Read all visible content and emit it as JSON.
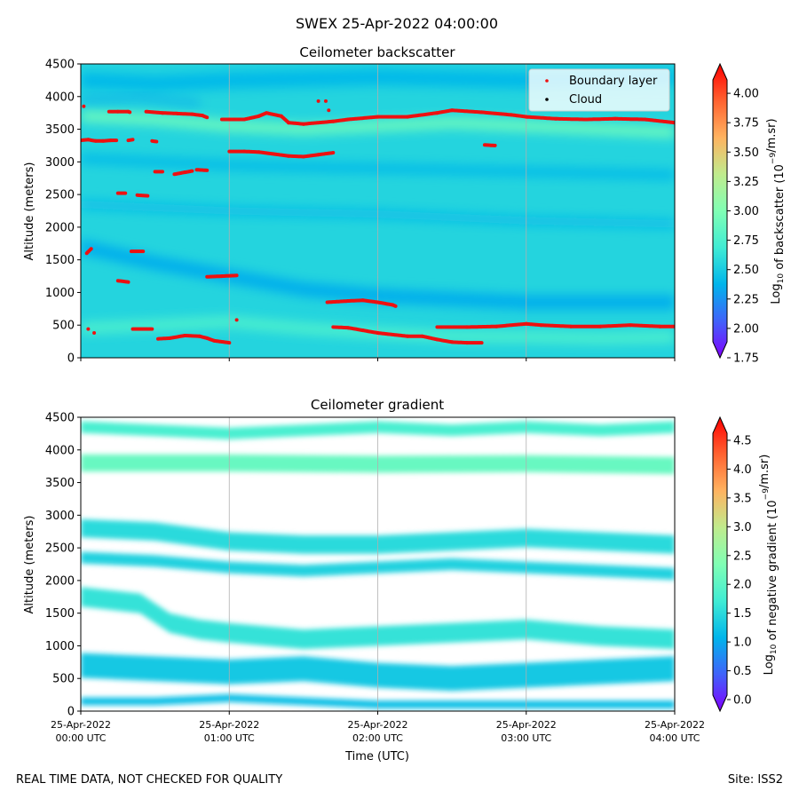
{
  "suptitle": "SWEX 25-Apr-2022 04:00:00",
  "footer": {
    "left": "REAL TIME DATA, NOT CHECKED FOR QUALITY",
    "right": "Site: ISS2"
  },
  "colors": {
    "boundary_layer": "#ee1111",
    "cloud": "#000000",
    "grid": "#b0b0b0"
  },
  "chart_data": [
    {
      "type": "heatmap",
      "title": "Ceilometer backscatter",
      "ylabel": "Altitude (meters)",
      "xlabel": "",
      "xlim_hours": [
        0,
        4
      ],
      "ylim": [
        0,
        4500
      ],
      "yticks": [
        0,
        500,
        1000,
        1500,
        2000,
        2500,
        3000,
        3500,
        4000,
        4500
      ],
      "xticks": [
        {
          "hour": 0,
          "line1": "",
          "line2": ""
        },
        {
          "hour": 1,
          "line1": "",
          "line2": ""
        },
        {
          "hour": 2,
          "line1": "",
          "line2": ""
        },
        {
          "hour": 3,
          "line1": "",
          "line2": ""
        },
        {
          "hour": 4,
          "line1": "",
          "line2": ""
        }
      ],
      "colorbar": {
        "label_prefix": "Log",
        "label_sub": "10",
        "label_mid": " of backscatter (10",
        "label_sup": "−9",
        "label_suffix": "/m.sr)",
        "min": 1.75,
        "max": 4.25,
        "ticks": [
          "1.75",
          "2.00",
          "2.25",
          "2.50",
          "2.75",
          "3.00",
          "3.25",
          "3.50",
          "3.75",
          "4.00"
        ],
        "extend": "both"
      },
      "legend": {
        "location": "upper right",
        "entries": [
          {
            "label": "Boundary layer",
            "color": "#ee1111"
          },
          {
            "label": "Cloud",
            "color": "#000000"
          }
        ]
      },
      "background_value": 2.55,
      "bands": [
        {
          "name": "upper-high",
          "value": 2.4,
          "points": [
            [
              0,
              4250
            ],
            [
              0.5,
              4200
            ],
            [
              1,
              4250
            ],
            [
              2,
              4300
            ],
            [
              3,
              4250
            ],
            [
              4,
              4300
            ]
          ],
          "width": 250
        },
        {
          "name": "bright-upper",
          "value": 2.9,
          "points": [
            [
              0,
              3700
            ],
            [
              0.5,
              3650
            ],
            [
              1,
              3550
            ],
            [
              1.5,
              3500
            ],
            [
              2,
              3550
            ],
            [
              2.5,
              3600
            ],
            [
              3,
              3550
            ],
            [
              3.5,
              3500
            ],
            [
              4,
              3450
            ]
          ],
          "width": 170
        },
        {
          "name": "dark-mid",
          "value": 2.4,
          "points": [
            [
              0,
              3050
            ],
            [
              1,
              2950
            ],
            [
              2,
              2900
            ],
            [
              3,
              2850
            ],
            [
              4,
              2800
            ]
          ],
          "width": 140
        },
        {
          "name": "dark-mid2",
          "value": 2.42,
          "points": [
            [
              0,
              2350
            ],
            [
              1,
              2250
            ],
            [
              2,
              2200
            ],
            [
              3,
              2100
            ],
            [
              4,
              2050
            ]
          ],
          "width": 140
        },
        {
          "name": "dark-low",
          "value": 2.35,
          "points": [
            [
              0,
              1700
            ],
            [
              0.5,
              1450
            ],
            [
              1,
              1250
            ],
            [
              1.5,
              1050
            ],
            [
              2,
              950
            ],
            [
              2.5,
              900
            ],
            [
              3,
              850
            ],
            [
              3.5,
              850
            ],
            [
              4,
              850
            ]
          ],
          "width": 220
        },
        {
          "name": "bright-low",
          "value": 2.75,
          "points": [
            [
              0,
              450
            ],
            [
              0.5,
              500
            ],
            [
              1,
              550
            ],
            [
              1.5,
              450
            ],
            [
              2,
              380
            ],
            [
              2.5,
              330
            ],
            [
              3,
              320
            ],
            [
              3.5,
              300
            ],
            [
              4,
              320
            ]
          ],
          "width": 170
        },
        {
          "name": "very-high",
          "value": 2.3,
          "points": [
            [
              0,
              3950
            ],
            [
              0.4,
              3980
            ],
            [
              0.8,
              3900
            ]
          ],
          "width": 60
        }
      ],
      "boundary_layer_segments": [
        [
          [
            0.02,
            3850
          ]
        ],
        [
          [
            0.0,
            3330
          ],
          [
            0.05,
            3340
          ],
          [
            0.1,
            3320
          ],
          [
            0.15,
            3320
          ],
          [
            0.2,
            3330
          ],
          [
            0.24,
            3330
          ]
        ],
        [
          [
            0.32,
            3330
          ],
          [
            0.35,
            3340
          ]
        ],
        [
          [
            0.48,
            3320
          ],
          [
            0.51,
            3310
          ]
        ],
        [
          [
            0.19,
            3770
          ],
          [
            0.25,
            3770
          ],
          [
            0.32,
            3770
          ],
          [
            0.33,
            3760
          ]
        ],
        [
          [
            0.44,
            3770
          ],
          [
            0.55,
            3750
          ],
          [
            0.65,
            3740
          ],
          [
            0.75,
            3730
          ],
          [
            0.82,
            3710
          ],
          [
            0.85,
            3680
          ]
        ],
        [
          [
            0.95,
            3650
          ],
          [
            1.1,
            3650
          ],
          [
            1.2,
            3700
          ],
          [
            1.25,
            3750
          ],
          [
            1.35,
            3700
          ],
          [
            1.4,
            3600
          ],
          [
            1.5,
            3580
          ],
          [
            1.7,
            3620
          ],
          [
            1.8,
            3650
          ],
          [
            2.0,
            3690
          ],
          [
            2.2,
            3690
          ],
          [
            2.4,
            3750
          ],
          [
            2.5,
            3790
          ],
          [
            2.7,
            3760
          ],
          [
            2.9,
            3720
          ],
          [
            3.0,
            3690
          ],
          [
            3.2,
            3660
          ],
          [
            3.4,
            3650
          ],
          [
            3.6,
            3660
          ],
          [
            3.8,
            3650
          ],
          [
            4.0,
            3600
          ]
        ],
        [
          [
            1.0,
            3160
          ],
          [
            1.1,
            3160
          ],
          [
            1.2,
            3150
          ],
          [
            1.3,
            3120
          ],
          [
            1.4,
            3090
          ],
          [
            1.5,
            3080
          ],
          [
            1.6,
            3110
          ],
          [
            1.7,
            3140
          ]
        ],
        [
          [
            1.6,
            3930
          ]
        ],
        [
          [
            1.67,
            3790
          ]
        ],
        [
          [
            1.65,
            3930
          ]
        ],
        [
          [
            2.72,
            3260
          ],
          [
            2.79,
            3250
          ]
        ],
        [
          [
            0.5,
            2850
          ],
          [
            0.55,
            2850
          ]
        ],
        [
          [
            0.63,
            2810
          ],
          [
            0.7,
            2840
          ],
          [
            0.75,
            2860
          ]
        ],
        [
          [
            0.78,
            2880
          ],
          [
            0.85,
            2870
          ]
        ],
        [
          [
            0.25,
            2520
          ],
          [
            0.3,
            2520
          ]
        ],
        [
          [
            0.38,
            2490
          ],
          [
            0.45,
            2480
          ]
        ],
        [
          [
            0.04,
            1600
          ],
          [
            0.07,
            1670
          ]
        ],
        [
          [
            0.34,
            1630
          ],
          [
            0.42,
            1630
          ]
        ],
        [
          [
            0.25,
            1180
          ],
          [
            0.32,
            1160
          ]
        ],
        [
          [
            0.85,
            1240
          ],
          [
            0.95,
            1250
          ],
          [
            1.05,
            1260
          ]
        ],
        [
          [
            1.66,
            850
          ],
          [
            1.8,
            870
          ],
          [
            1.9,
            880
          ],
          [
            2.0,
            850
          ],
          [
            2.1,
            810
          ],
          [
            2.12,
            790
          ]
        ],
        [
          [
            0.05,
            440
          ]
        ],
        [
          [
            0.09,
            380
          ]
        ],
        [
          [
            0.35,
            440
          ],
          [
            0.48,
            440
          ]
        ],
        [
          [
            1.05,
            580
          ]
        ],
        [
          [
            0.52,
            290
          ],
          [
            0.6,
            300
          ],
          [
            0.7,
            340
          ],
          [
            0.8,
            330
          ],
          [
            0.85,
            300
          ],
          [
            0.9,
            260
          ],
          [
            1.0,
            230
          ]
        ],
        [
          [
            1.7,
            470
          ],
          [
            1.8,
            460
          ],
          [
            1.9,
            420
          ],
          [
            2.0,
            380
          ],
          [
            2.2,
            330
          ],
          [
            2.3,
            330
          ],
          [
            2.4,
            280
          ],
          [
            2.5,
            240
          ],
          [
            2.6,
            230
          ],
          [
            2.7,
            230
          ]
        ],
        [
          [
            2.4,
            470
          ],
          [
            2.6,
            470
          ],
          [
            2.8,
            480
          ],
          [
            2.95,
            510
          ],
          [
            3.0,
            520
          ],
          [
            3.1,
            500
          ],
          [
            3.3,
            480
          ],
          [
            3.5,
            480
          ],
          [
            3.7,
            500
          ],
          [
            3.9,
            480
          ],
          [
            4.0,
            480
          ]
        ]
      ]
    },
    {
      "type": "heatmap",
      "title": "Ceilometer gradient",
      "ylabel": "Altitude (meters)",
      "xlabel": "Time (UTC)",
      "xlim_hours": [
        0,
        4
      ],
      "ylim": [
        0,
        4500
      ],
      "yticks": [
        0,
        500,
        1000,
        1500,
        2000,
        2500,
        3000,
        3500,
        4000,
        4500
      ],
      "xticks": [
        {
          "hour": 0,
          "line1": "25-Apr-2022",
          "line2": "00:00 UTC"
        },
        {
          "hour": 1,
          "line1": "25-Apr-2022",
          "line2": "01:00 UTC"
        },
        {
          "hour": 2,
          "line1": "25-Apr-2022",
          "line2": "02:00 UTC"
        },
        {
          "hour": 3,
          "line1": "25-Apr-2022",
          "line2": "03:00 UTC"
        },
        {
          "hour": 4,
          "line1": "25-Apr-2022",
          "line2": "04:00 UTC"
        }
      ],
      "colorbar": {
        "label_prefix": "Log",
        "label_sub": "10",
        "label_mid": " of negative gradient (10",
        "label_sup": "−9",
        "label_suffix": "/m.sr)",
        "min": -0.2,
        "max": 4.9,
        "ticks": [
          "0.0",
          "0.5",
          "1.0",
          "1.5",
          "2.0",
          "2.5",
          "3.0",
          "3.5",
          "4.0",
          "4.5"
        ],
        "extend": "both"
      },
      "bands": [
        {
          "name": "top-band",
          "value": 1.8,
          "points": [
            [
              0,
              4350
            ],
            [
              0.5,
              4300
            ],
            [
              1,
              4250
            ],
            [
              1.5,
              4300
            ],
            [
              2,
              4350
            ],
            [
              2.5,
              4300
            ],
            [
              3,
              4350
            ],
            [
              3.5,
              4300
            ],
            [
              4,
              4350
            ]
          ],
          "width": 180
        },
        {
          "name": "upper-band",
          "value": 2.1,
          "points": [
            [
              0,
              3800
            ],
            [
              1,
              3800
            ],
            [
              2,
              3780
            ],
            [
              3,
              3790
            ],
            [
              4,
              3760
            ]
          ],
          "width": 260
        },
        {
          "name": "mid-band-1",
          "value": 1.5,
          "points": [
            [
              0,
              2800
            ],
            [
              0.5,
              2750
            ],
            [
              1,
              2600
            ],
            [
              1.5,
              2550
            ],
            [
              2,
              2550
            ],
            [
              2.5,
              2600
            ],
            [
              3,
              2650
            ],
            [
              3.5,
              2600
            ],
            [
              4,
              2550
            ]
          ],
          "width": 280
        },
        {
          "name": "mid-band-2",
          "value": 1.4,
          "points": [
            [
              0,
              2350
            ],
            [
              0.5,
              2300
            ],
            [
              1,
              2200
            ],
            [
              1.5,
              2150
            ],
            [
              2,
              2200
            ],
            [
              2.5,
              2250
            ],
            [
              3,
              2200
            ],
            [
              3.5,
              2150
            ],
            [
              4,
              2100
            ]
          ],
          "width": 180
        },
        {
          "name": "low-band-1",
          "value": 1.6,
          "points": [
            [
              0,
              1750
            ],
            [
              0.4,
              1650
            ],
            [
              0.6,
              1350
            ],
            [
              0.8,
              1250
            ],
            [
              1,
              1200
            ],
            [
              1.5,
              1100
            ],
            [
              2,
              1150
            ],
            [
              2.5,
              1200
            ],
            [
              3,
              1250
            ],
            [
              3.5,
              1150
            ],
            [
              4,
              1100
            ]
          ],
          "width": 300
        },
        {
          "name": "low-band-2",
          "value": 1.3,
          "points": [
            [
              0,
              700
            ],
            [
              0.5,
              650
            ],
            [
              1,
              600
            ],
            [
              1.5,
              650
            ],
            [
              2,
              550
            ],
            [
              2.5,
              500
            ],
            [
              3,
              550
            ],
            [
              3.5,
              600
            ],
            [
              4,
              650
            ]
          ],
          "width": 380
        },
        {
          "name": "bottom-band",
          "value": 1.2,
          "points": [
            [
              0,
              150
            ],
            [
              0.5,
              150
            ],
            [
              1,
              200
            ],
            [
              1.5,
              150
            ],
            [
              2,
              100
            ],
            [
              2.5,
              100
            ],
            [
              3,
              100
            ],
            [
              3.5,
              100
            ],
            [
              4,
              100
            ]
          ],
          "width": 120
        }
      ]
    }
  ]
}
